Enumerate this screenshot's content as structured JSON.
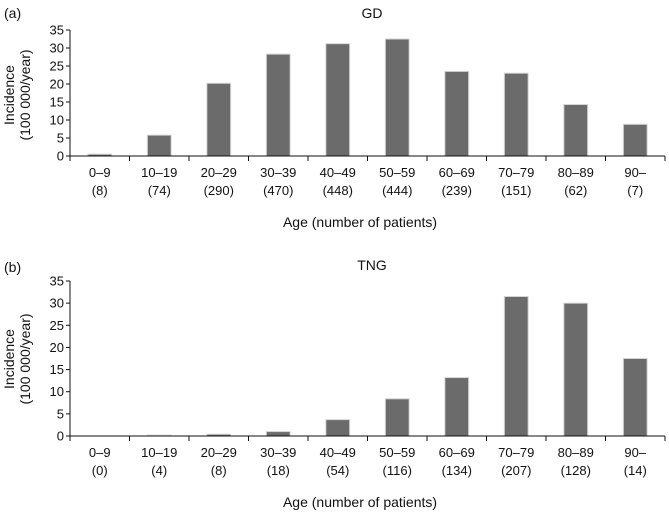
{
  "chart_data": [
    {
      "type": "bar",
      "panel_label": "(a)",
      "title": "GD",
      "ylabel_line1": "Incidence",
      "ylabel_line2": "(100 000/year)",
      "xlabel": "Age (number of patients)",
      "ylim": [
        0,
        35
      ],
      "yticks": [
        "0",
        "5",
        "10",
        "15",
        "20",
        "25",
        "30",
        "35"
      ],
      "categories": [
        "0–9",
        "10–19",
        "20–29",
        "30–39",
        "40–49",
        "50–59",
        "60–69",
        "70–79",
        "80–89",
        "90–"
      ],
      "counts": [
        "(8)",
        "(74)",
        "(290)",
        "(470)",
        "(448)",
        "(444)",
        "(239)",
        "(151)",
        "(62)",
        "(7)"
      ],
      "values": [
        0.5,
        5.8,
        20.2,
        28.3,
        31.2,
        32.5,
        23.5,
        23.0,
        14.3,
        8.8
      ],
      "grid": false,
      "bar_color": "#6b6b6b"
    },
    {
      "type": "bar",
      "panel_label": "(b)",
      "title": "TNG",
      "ylabel_line1": "Incidence",
      "ylabel_line2": "(100 000/year)",
      "xlabel": "Age (number of patients)",
      "ylim": [
        0,
        35
      ],
      "yticks": [
        "0",
        "5",
        "10",
        "15",
        "20",
        "25",
        "30",
        "35"
      ],
      "categories": [
        "0–9",
        "10–19",
        "20–29",
        "30–39",
        "40–49",
        "50–59",
        "60–69",
        "70–79",
        "80–89",
        "90–"
      ],
      "counts": [
        "(0)",
        "(4)",
        "(8)",
        "(18)",
        "(54)",
        "(116)",
        "(134)",
        "(207)",
        "(128)",
        "(14)"
      ],
      "values": [
        0.0,
        0.2,
        0.4,
        1.0,
        3.7,
        8.4,
        13.2,
        31.5,
        30.0,
        17.5
      ],
      "grid": false,
      "bar_color": "#6b6b6b"
    }
  ]
}
